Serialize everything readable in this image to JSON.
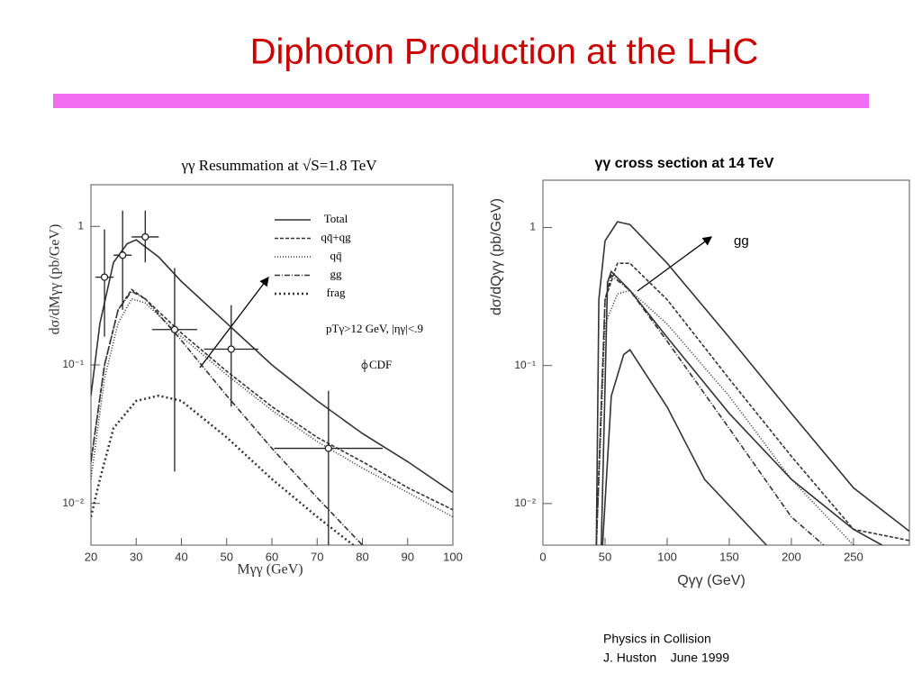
{
  "title": "Diphoton Production at the LHC",
  "footer": [
    "Physics in Collision",
    "J. Huston    June 1999"
  ],
  "chart_data": [
    {
      "type": "line",
      "title": "γγ Resummation at √S=1.8 TeV",
      "x_label": "Mγγ (GeV)",
      "y_label": "dσ/dMγγ (pb/GeV)",
      "xlim": [
        20,
        100
      ],
      "xticks": [
        20,
        30,
        40,
        50,
        60,
        70,
        80,
        90,
        100
      ],
      "ylim": [
        0.005,
        2
      ],
      "ylog": true,
      "yticks": [
        1,
        {
          "value": 0.1,
          "label": "10⁻¹"
        },
        {
          "value": 0.01,
          "label": "10⁻²"
        }
      ],
      "legend": true,
      "annotations": [
        "pTγ>12 GeV, |ηγ|<.9",
        "CDF"
      ],
      "series": [
        {
          "name": "Total",
          "color": "#333333",
          "dash": "none",
          "x": [
            20,
            22,
            25,
            28,
            30,
            35,
            40,
            50,
            60,
            70,
            80,
            90,
            100
          ],
          "values": [
            0.06,
            0.2,
            0.55,
            0.75,
            0.8,
            0.6,
            0.4,
            0.2,
            0.1,
            0.055,
            0.032,
            0.02,
            0.012
          ]
        },
        {
          "name": "qq̄+qg",
          "color": "#333333",
          "dash": "4,2",
          "x": [
            20,
            23,
            26,
            29,
            32,
            40,
            50,
            60,
            70,
            80,
            90,
            100
          ],
          "values": [
            0.02,
            0.1,
            0.25,
            0.35,
            0.3,
            0.17,
            0.09,
            0.05,
            0.03,
            0.02,
            0.013,
            0.009
          ]
        },
        {
          "name": "qq̄",
          "color": "#333333",
          "dash": "1,2",
          "x": [
            20,
            23,
            26,
            29,
            32,
            40,
            50,
            60,
            70,
            80,
            90,
            100
          ],
          "values": [
            0.015,
            0.08,
            0.2,
            0.3,
            0.28,
            0.16,
            0.085,
            0.047,
            0.028,
            0.018,
            0.012,
            0.008
          ]
        },
        {
          "name": "gg",
          "color": "#333333",
          "dash": "6,2,1,2",
          "x": [
            20,
            23,
            26,
            29,
            32,
            40,
            50,
            60,
            70,
            80
          ],
          "values": [
            0.02,
            0.1,
            0.25,
            0.34,
            0.3,
            0.15,
            0.06,
            0.025,
            0.011,
            0.005
          ]
        },
        {
          "name": "frag",
          "color": "#333333",
          "dash": "2,3",
          "x": [
            20,
            22,
            25,
            30,
            35,
            40,
            50,
            60,
            70,
            78
          ],
          "values": [
            0.008,
            0.015,
            0.035,
            0.055,
            0.06,
            0.055,
            0.03,
            0.015,
            0.008,
            0.005
          ]
        }
      ],
      "points": {
        "name": "CDF",
        "x": [
          23,
          27,
          32,
          38.5,
          51,
          72.5
        ],
        "y": [
          0.43,
          0.62,
          0.84,
          0.18,
          0.13,
          0.025
        ],
        "xerr": [
          2,
          2,
          3,
          5,
          6,
          12
        ],
        "ylow": [
          0.16,
          0.25,
          0.55,
          0.017,
          0.05,
          0.005
        ],
        "yhigh": [
          0.95,
          1.3,
          1.3,
          0.5,
          0.27,
          0.065
        ]
      }
    },
    {
      "type": "line",
      "title": "γγ cross section at 14 TeV",
      "x_label": "Qγγ (GeV)",
      "y_label": "dσ/dQγγ (pb/GeV)",
      "xlim": [
        0,
        295
      ],
      "xticks": [
        0,
        50,
        100,
        150,
        200,
        250
      ],
      "ylim": [
        0.005,
        2.2
      ],
      "ylog": true,
      "yticks": [
        1,
        {
          "value": 0.1,
          "label": "10⁻¹"
        },
        {
          "value": 0.01,
          "label": "10⁻²"
        }
      ],
      "legend": false,
      "annotations": [
        "gg"
      ],
      "series": [
        {
          "color": "#333333",
          "dash": "none",
          "x": [
            43,
            45,
            50,
            60,
            70,
            100,
            150,
            200,
            250,
            295
          ],
          "values": [
            0.005,
            0.3,
            0.8,
            1.1,
            1.05,
            0.55,
            0.16,
            0.045,
            0.013,
            0.0063
          ]
        },
        {
          "color": "#333333",
          "dash": "4,2",
          "x": [
            43,
            50,
            60,
            70,
            100,
            150,
            200,
            250,
            295
          ],
          "values": [
            0.005,
            0.3,
            0.55,
            0.55,
            0.3,
            0.08,
            0.022,
            0.0065,
            0.0054
          ]
        },
        {
          "color": "#333333",
          "dash": "1,2",
          "x": [
            43,
            50,
            60,
            70,
            100,
            150,
            200,
            250
          ],
          "values": [
            0.005,
            0.2,
            0.33,
            0.35,
            0.2,
            0.06,
            0.015,
            0.005
          ]
        },
        {
          "color": "#333333",
          "dash": "6,2,1,2",
          "x": [
            43,
            50,
            55,
            70,
            100,
            150,
            200,
            226
          ],
          "values": [
            0.005,
            0.3,
            0.45,
            0.35,
            0.15,
            0.035,
            0.008,
            0.005
          ]
        },
        {
          "color": "#333333",
          "dash": "none",
          "x": [
            47,
            52,
            55,
            70,
            100,
            150,
            200,
            250,
            273
          ],
          "values": [
            0.005,
            0.4,
            0.48,
            0.35,
            0.16,
            0.045,
            0.015,
            0.0065,
            0.005
          ]
        },
        {
          "color": "#333333",
          "dash": "none",
          "x": [
            48,
            55,
            65,
            70,
            100,
            130,
            180
          ],
          "values": [
            0.005,
            0.06,
            0.12,
            0.13,
            0.05,
            0.015,
            0.005
          ]
        }
      ]
    }
  ]
}
